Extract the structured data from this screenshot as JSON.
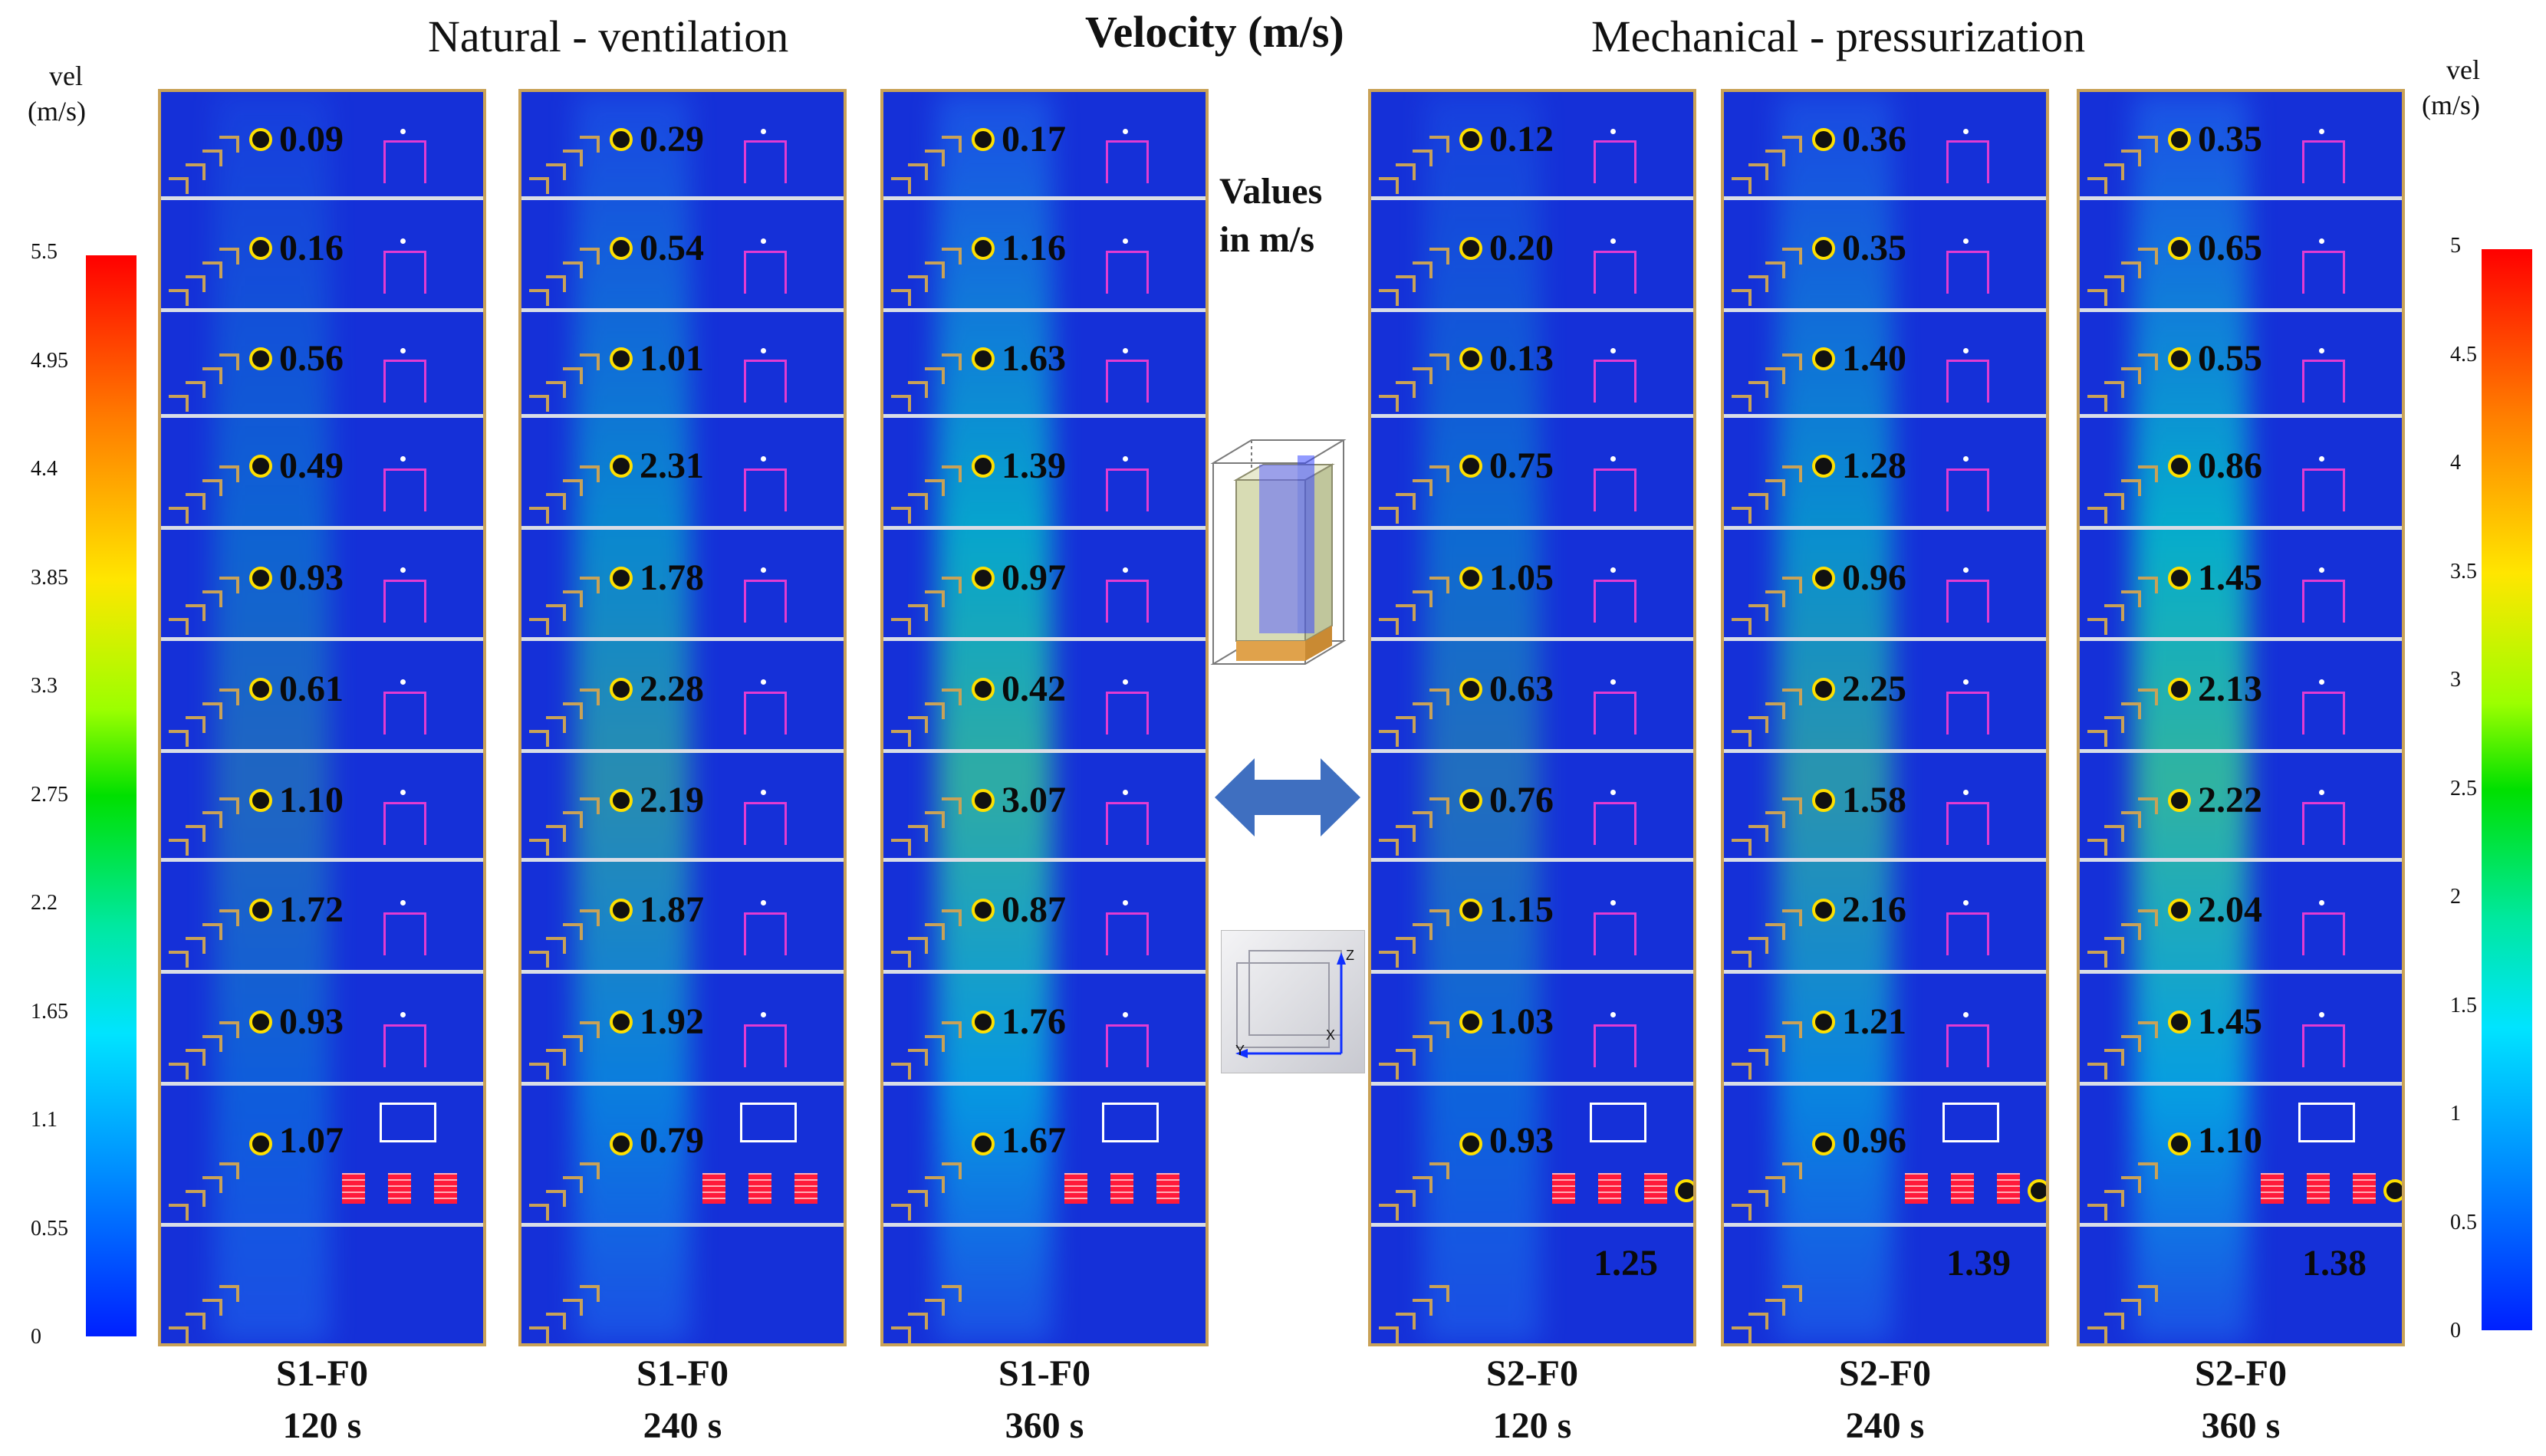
{
  "header": {
    "left_title": "Natural - ventilation",
    "center_title": "Velocity (m/s)",
    "right_title": "Mechanical  - pressurization",
    "values_note_line1": "Values",
    "values_note_line2": "in m/s"
  },
  "left_scale": {
    "label_line1": "vel",
    "label_line2": "(m/s)",
    "ticks": [
      "5.5",
      "4.95",
      "4.4",
      "3.85",
      "3.3",
      "2.75",
      "2.2",
      "1.65",
      "1.1",
      "0.55",
      "0"
    ]
  },
  "right_scale": {
    "label_line1": "vel",
    "label_line2": "(m/s)",
    "ticks": [
      "5",
      "4.5",
      "4",
      "3.5",
      "3",
      "2.5",
      "2",
      "1.5",
      "1",
      "0.5",
      "0"
    ]
  },
  "panels": [
    {
      "scenario": "S1-F0",
      "time": "120 s",
      "values": [
        "0.09",
        "0.16",
        "0.56",
        "0.49",
        "0.93",
        "0.61",
        "1.10",
        "1.72",
        "0.93",
        "1.07"
      ],
      "bottom_value": ""
    },
    {
      "scenario": "S1-F0",
      "time": "240 s",
      "values": [
        "0.29",
        "0.54",
        "1.01",
        "2.31",
        "1.78",
        "2.28",
        "2.19",
        "1.87",
        "1.92",
        "0.79"
      ],
      "bottom_value": ""
    },
    {
      "scenario": "S1-F0",
      "time": "360 s",
      "values": [
        "0.17",
        "1.16",
        "1.63",
        "1.39",
        "0.97",
        "0.42",
        "3.07",
        "0.87",
        "1.76",
        "1.67"
      ],
      "bottom_value": ""
    },
    {
      "scenario": "S2-F0",
      "time": "120 s",
      "values": [
        "0.12",
        "0.20",
        "0.13",
        "0.75",
        "1.05",
        "0.63",
        "0.76",
        "1.15",
        "1.03",
        "0.93"
      ],
      "bottom_value": "1.25"
    },
    {
      "scenario": "S2-F0",
      "time": "240 s",
      "values": [
        "0.36",
        "0.35",
        "1.40",
        "1.28",
        "0.96",
        "2.25",
        "1.58",
        "2.16",
        "1.21",
        "0.96"
      ],
      "bottom_value": "1.39"
    },
    {
      "scenario": "S2-F0",
      "time": "360 s",
      "values": [
        "0.35",
        "0.65",
        "0.55",
        "0.86",
        "1.45",
        "2.13",
        "2.22",
        "2.04",
        "1.45",
        "1.10"
      ],
      "bottom_value": "1.38"
    }
  ],
  "axis_triad": {
    "z": "Z",
    "y": "Y",
    "x": "X"
  },
  "colors": {
    "background_field": "#1530d8",
    "frame": "#c9a257",
    "marker_fill": "#111111",
    "marker_ring": "#ffe000",
    "door": "#e23bd2",
    "fan": "#ff1a3a",
    "arrow": "#3f6fc0"
  }
}
